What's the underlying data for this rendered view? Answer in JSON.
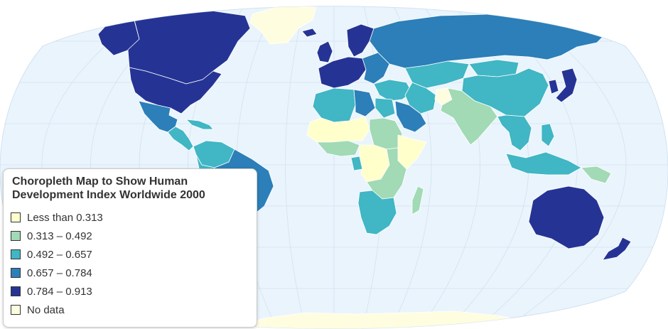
{
  "map": {
    "colors": {
      "ocean": "#eaf4fc",
      "graticule": "#d2e2f0",
      "border": "#ffffff"
    },
    "classes": [
      {
        "id": "c1",
        "label": "Less than 0.313",
        "color": "#ffffcc"
      },
      {
        "id": "c2",
        "label": "0.313 – 0.492",
        "color": "#a1dab4"
      },
      {
        "id": "c3",
        "label": "0.492 – 0.657",
        "color": "#41b6c4"
      },
      {
        "id": "c4",
        "label": "0.657 – 0.784",
        "color": "#2c7fb8"
      },
      {
        "id": "c5",
        "label": "0.784 – 0.913",
        "color": "#253494"
      },
      {
        "id": "nodata",
        "label": "No data",
        "color": "#fffde0"
      }
    ],
    "regions": [
      {
        "name": "greenland",
        "class": "nodata"
      },
      {
        "name": "canada",
        "class": "c5"
      },
      {
        "name": "united-states",
        "class": "c5"
      },
      {
        "name": "alaska",
        "class": "c5"
      },
      {
        "name": "mexico",
        "class": "c4"
      },
      {
        "name": "central-america",
        "class": "c3"
      },
      {
        "name": "caribbean",
        "class": "c3"
      },
      {
        "name": "venezuela-colombia",
        "class": "c3"
      },
      {
        "name": "brazil",
        "class": "c4"
      },
      {
        "name": "andes",
        "class": "c3"
      },
      {
        "name": "southern-cone",
        "class": "c4"
      },
      {
        "name": "western-europe",
        "class": "c5"
      },
      {
        "name": "scandinavia",
        "class": "c5"
      },
      {
        "name": "iceland",
        "class": "c5"
      },
      {
        "name": "uk-ireland",
        "class": "c5"
      },
      {
        "name": "eastern-europe",
        "class": "c4"
      },
      {
        "name": "russia",
        "class": "c4"
      },
      {
        "name": "kazakhstan-central-asia",
        "class": "c3"
      },
      {
        "name": "china",
        "class": "c3"
      },
      {
        "name": "mongolia",
        "class": "c3"
      },
      {
        "name": "japan",
        "class": "c5"
      },
      {
        "name": "korea",
        "class": "c5"
      },
      {
        "name": "turkey-middle-east",
        "class": "c3"
      },
      {
        "name": "saudi-arabia-gulf",
        "class": "c4"
      },
      {
        "name": "iran",
        "class": "c3"
      },
      {
        "name": "afghanistan",
        "class": "nodata"
      },
      {
        "name": "south-asia",
        "class": "c2"
      },
      {
        "name": "southeast-asia",
        "class": "c3"
      },
      {
        "name": "indonesia",
        "class": "c3"
      },
      {
        "name": "philippines",
        "class": "c3"
      },
      {
        "name": "papua",
        "class": "c2"
      },
      {
        "name": "north-africa-west",
        "class": "c3"
      },
      {
        "name": "libya",
        "class": "c4"
      },
      {
        "name": "egypt",
        "class": "c3"
      },
      {
        "name": "sahel-west",
        "class": "c1"
      },
      {
        "name": "west-africa-coast",
        "class": "c2"
      },
      {
        "name": "sudan-chad",
        "class": "c2"
      },
      {
        "name": "horn-of-africa",
        "class": "c1"
      },
      {
        "name": "central-africa",
        "class": "c1"
      },
      {
        "name": "gabon",
        "class": "c3"
      },
      {
        "name": "east-africa",
        "class": "c2"
      },
      {
        "name": "southern-africa",
        "class": "c3"
      },
      {
        "name": "madagascar",
        "class": "c2"
      },
      {
        "name": "australia",
        "class": "c5"
      },
      {
        "name": "new-zealand",
        "class": "c5"
      },
      {
        "name": "antarctica",
        "class": "nodata"
      }
    ]
  },
  "legend": {
    "title": "Choropleth Map to Show Human\nDevelopment Index Worldwide 2000"
  }
}
